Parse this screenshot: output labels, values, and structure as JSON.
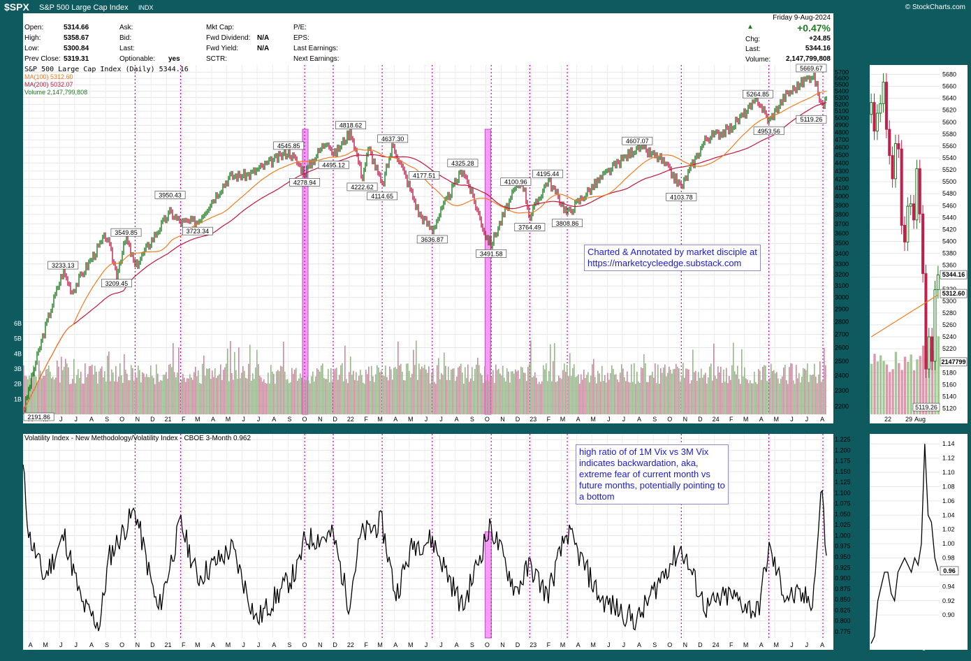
{
  "header": {
    "symbol": "$SPX",
    "name": "S&P 500 Large Cap Index",
    "exchange": "INDX",
    "copyright": "© StockCharts.com"
  },
  "quote": {
    "open_label": "Open:",
    "open": "5314.66",
    "high_label": "High:",
    "high": "5358.67",
    "low_label": "Low:",
    "low": "5300.84",
    "prev_label": "Prev Close:",
    "prev": "5319.31",
    "ask_label": "Ask:",
    "bid_label": "Bid:",
    "last_label": "Last:",
    "optionable_label": "Optionable:",
    "optionable": "yes",
    "mktcap_label": "Mkt Cap:",
    "fwddiv_label": "Fwd Dividend:",
    "fwddiv": "N/A",
    "fwdyield_label": "Fwd Yield:",
    "fwdyield": "N/A",
    "sctr_label": "SCTR:",
    "pe_label": "P/E:",
    "eps_label": "EPS:",
    "lastearn_label": "Last Earnings:",
    "nextearn_label": "Next Earnings:",
    "date": "Friday  9-Aug-2024",
    "pct": "+0.47%",
    "chg_label": "Chg:",
    "chg": "+24.85",
    "last2_label": "Last:",
    "last": "5344.16",
    "vol_label": "Volume:",
    "volume": "2,147,799,808"
  },
  "legend": {
    "price": "S&P 500 Large Cap Index (Daily) 5344.16",
    "ma100": "MA(100) 5312.60",
    "ma200": "MA(200) 5032.07",
    "volume": "Volume 2,147,799,808",
    "vix": "Volatility Index - New Methodology/Volatility Index - CBOE 3-Month 0.962"
  },
  "annotations": {
    "top_line1": "Charted & Annotated by market disciple at",
    "top_line2": "https://marketcycleedge.substack.com",
    "vix_line1": "high ratio of of 1M Vix vs 3M Vix",
    "vix_line2": "indicates backwardation, aka,",
    "vix_line3": "extreme fear of current month vs",
    "vix_line4": "future months, potentially pointing to",
    "vix_line5": "a bottom"
  },
  "colors": {
    "frame": "#0e5a5e",
    "price_up": "#1f7a1f",
    "price_down": "#c0204a",
    "ma100": "#f07c1e",
    "ma200": "#c0183c",
    "volume_up": "#8fbf80",
    "volume_down": "#d8849c",
    "marker_line": "#cc00cc",
    "highlight": "#f07cf0",
    "vix_line": "#000000",
    "annotation_text": "#1a1ad6"
  },
  "chart_data": [
    {
      "type": "line",
      "title": "S&P 500 Large Cap Index (Daily)",
      "series": [
        {
          "name": "S&P 500 Large Cap Index",
          "x": [
            "2020-03-23",
            "2020-06-08",
            "2020-06-26",
            "2020-09-02",
            "2020-09-23",
            "2020-10-12",
            "2020-10-30",
            "2021-01-08",
            "2021-01-29",
            "2021-03-04",
            "2021-05-07",
            "2021-06-15",
            "2021-09-02",
            "2021-10-04",
            "2021-11-18",
            "2021-12-01",
            "2022-01-04",
            "2022-01-27",
            "2022-02-09",
            "2022-03-08",
            "2022-03-29",
            "2022-05-20",
            "2022-06-16",
            "2022-08-16",
            "2022-09-30",
            "2022-10-12",
            "2022-11-30",
            "2022-12-13",
            "2022-12-28",
            "2023-02-02",
            "2023-03-13",
            "2023-05-19",
            "2023-07-31",
            "2023-09-15",
            "2023-10-27",
            "2023-12-15",
            "2024-01-31",
            "2024-03-28",
            "2024-04-19",
            "2024-05-21",
            "2024-07-16",
            "2024-08-05",
            "2024-08-09"
          ],
          "values": [
            2191.86,
            3233.13,
            3050,
            3580,
            3209.45,
            3549.85,
            3269.96,
            3824.68,
            3714.24,
            3723.34,
            4232,
            4255,
            4545.85,
            4278.94,
            4704,
            4495.12,
            4818.62,
            4222.62,
            4589.38,
            4114.65,
            4637.3,
            3810,
            3636.87,
            4325.28,
            3584,
            3491.58,
            4100.96,
            4177.51,
            3764.49,
            4195.44,
            3808.86,
            4212,
            4607.07,
            4450,
            4103.78,
            4719,
            4845,
            5264.85,
            4953.56,
            5325,
            5669.67,
            5119.26,
            5344.16
          ]
        },
        {
          "name": "MA(100)",
          "last_value": 5312.6
        },
        {
          "name": "MA(200)",
          "last_value": 5032.07
        }
      ],
      "labeled_points": [
        "2191.86",
        "3233.13",
        "3209.45",
        "3549.85",
        "3950.43",
        "3723.34",
        "4545.85",
        "4278.94",
        "4495.12",
        "4818.62",
        "4222.62",
        "4114.65",
        "4637.30",
        "4177.51",
        "3636.87",
        "4325.28",
        "3491.58",
        "4100.96",
        "3764.49",
        "4195.44",
        "3808.86",
        "4607.07",
        "4103.78",
        "5264.85",
        "4953.56",
        "5669.67",
        "5119.26"
      ],
      "y_ticks": [
        2200,
        2300,
        2400,
        2500,
        2600,
        2700,
        2800,
        2900,
        3000,
        3100,
        3200,
        3300,
        3400,
        3500,
        3600,
        3700,
        3800,
        3900,
        4000,
        4100,
        4200,
        4300,
        4400,
        4500,
        4600,
        4700,
        4800,
        4900,
        5000,
        5100,
        5200,
        5300,
        5400,
        5500,
        5600,
        5700
      ],
      "ylim": [
        2150,
        5760
      ],
      "volume": {
        "ticks": [
          "1B",
          "2B",
          "3B",
          "4B",
          "5B",
          "6B"
        ],
        "last": "2,147,799,808"
      },
      "x_ticks": [
        "A",
        "M",
        "J",
        "J",
        "A",
        "S",
        "O",
        "N",
        "D",
        "21",
        "F",
        "M",
        "A",
        "M",
        "J",
        "J",
        "A",
        "S",
        "O",
        "N",
        "D",
        "22",
        "F",
        "M",
        "A",
        "M",
        "J",
        "J",
        "A",
        "S",
        "O",
        "N",
        "D",
        "23",
        "F",
        "M",
        "A",
        "M",
        "J",
        "J",
        "A",
        "S",
        "O",
        "N",
        "D",
        "24",
        "F",
        "M",
        "A",
        "M",
        "J",
        "J",
        "A"
      ],
      "highlight_bands": [
        "2021-10",
        "2022-10"
      ],
      "marker_dates": [
        "2020-10-30",
        "2021-01-29",
        "2021-10-04",
        "2021-11-30",
        "2022-03-08",
        "2022-06-16",
        "2022-10-12",
        "2022-12-28",
        "2023-03-13",
        "2023-10-27",
        "2024-04-19",
        "2024-08-05"
      ],
      "grid": true
    },
    {
      "type": "line",
      "title": "Volatility Index - New Methodology/Volatility Index - CBOE 3-Month",
      "series": [
        {
          "name": "VIX/VIX3M",
          "x": [
            "2020-03-16",
            "2020-04-01",
            "2020-05-01",
            "2020-06-11",
            "2020-07-15",
            "2020-08-20",
            "2020-09-08",
            "2020-10-30",
            "2020-12-15",
            "2021-01-29",
            "2021-03-04",
            "2021-05-12",
            "2021-06-30",
            "2021-09-20",
            "2021-10-04",
            "2021-11-30",
            "2021-12-31",
            "2022-01-24",
            "2022-03-07",
            "2022-04-04",
            "2022-05-09",
            "2022-06-16",
            "2022-08-16",
            "2022-09-30",
            "2022-10-12",
            "2022-11-30",
            "2022-12-28",
            "2023-02-01",
            "2023-03-13",
            "2023-05-19",
            "2023-07-31",
            "2023-09-25",
            "2023-10-27",
            "2023-12-15",
            "2024-01-31",
            "2024-03-28",
            "2024-04-19",
            "2024-05-21",
            "2024-07-16",
            "2024-08-05",
            "2024-08-09"
          ],
          "values": [
            1.21,
            1.0,
            0.9,
            1.0,
            0.84,
            0.79,
            0.95,
            1.06,
            0.82,
            1.03,
            0.9,
            0.97,
            0.8,
            0.92,
            0.99,
            1.0,
            0.84,
            1.0,
            1.03,
            0.86,
            0.98,
            0.99,
            0.83,
            0.99,
            1.02,
            0.87,
            0.93,
            0.86,
            1.01,
            0.85,
            0.8,
            0.92,
            0.97,
            0.83,
            0.86,
            0.82,
            0.97,
            0.86,
            0.85,
            1.14,
            0.962
          ]
        }
      ],
      "y_ticks": [
        0.775,
        0.8,
        0.825,
        0.85,
        0.875,
        0.9,
        0.925,
        0.95,
        0.975,
        1.0,
        1.025,
        1.05,
        1.075,
        1.1,
        1.125,
        1.15,
        1.175,
        1.2,
        1.225
      ],
      "ylim": [
        0.76,
        1.235
      ],
      "last": "0.962",
      "grid": true
    },
    {
      "type": "line",
      "title": "S&P 500 detail (candles)",
      "categories": [
        "2024-07-10",
        "2024-07-11",
        "2024-07-12",
        "2024-07-15",
        "2024-07-16",
        "2024-07-17",
        "2024-07-18",
        "2024-07-19",
        "2024-07-22",
        "2024-07-23",
        "2024-07-24",
        "2024-07-25",
        "2024-07-26",
        "2024-07-29",
        "2024-07-30",
        "2024-07-31",
        "2024-08-01",
        "2024-08-02",
        "2024-08-05",
        "2024-08-06",
        "2024-08-07",
        "2024-08-08",
        "2024-08-09"
      ],
      "values": [
        5633,
        5585,
        5615,
        5631,
        5667,
        5588,
        5544,
        5505,
        5564,
        5555,
        5427,
        5399,
        5459,
        5463,
        5436,
        5522,
        5446,
        5346,
        5186,
        5240,
        5199,
        5319,
        5344
      ],
      "x_ticks": [
        "22",
        "29",
        "Aug"
      ],
      "y_ticks": [
        5120,
        5140,
        5160,
        5180,
        5200,
        5220,
        5240,
        5260,
        5280,
        5300,
        5320,
        5340,
        5360,
        5380,
        5400,
        5420,
        5440,
        5460,
        5480,
        5500,
        5520,
        5540,
        5560,
        5580,
        5600,
        5620,
        5640,
        5660,
        5680
      ],
      "ylim": [
        5110,
        5690
      ],
      "labels": [
        "5344.16",
        "5312.60",
        "2147799",
        "5119.26"
      ]
    },
    {
      "type": "line",
      "title": "VIX ratio detail",
      "values": [
        0.86,
        0.87,
        0.92,
        0.94,
        0.96,
        0.96,
        0.93,
        0.92,
        0.96,
        0.97,
        0.98,
        0.97,
        0.96,
        0.98,
        0.97,
        1.0,
        1.14,
        1.04,
        1.03,
        0.98,
        0.962
      ],
      "x_ticks": [
        "22",
        "29",
        "Aug"
      ],
      "y_ticks": [
        0.9,
        0.92,
        0.94,
        0.96,
        0.98,
        1.0,
        1.02,
        1.04,
        1.06,
        1.08,
        1.1,
        1.12,
        1.14
      ],
      "ylim": [
        0.86,
        1.15
      ],
      "last": "0.96"
    }
  ]
}
